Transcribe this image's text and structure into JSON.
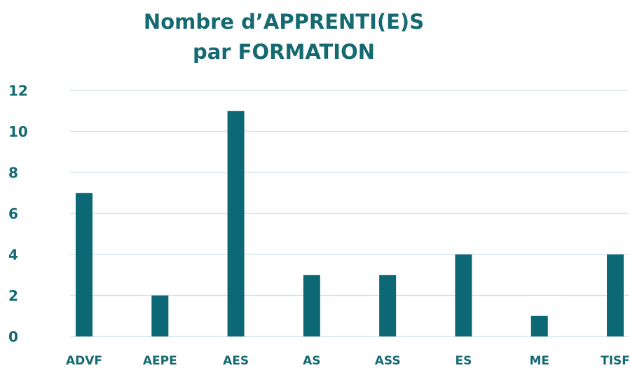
{
  "chart_data": {
    "type": "bar",
    "title": [
      "Nombre d’APPRENTI(E)S",
      "par FORMATION"
    ],
    "categories": [
      "ADVF",
      "AEPE",
      "AES",
      "AS",
      "ASS",
      "ES",
      "ME",
      "TISF"
    ],
    "values": [
      7,
      2,
      11,
      3,
      3,
      4,
      1,
      4
    ],
    "color": "#0b6874",
    "ylim": [
      0,
      12
    ],
    "yticks": [
      0,
      2,
      4,
      6,
      8,
      10,
      12
    ],
    "grid": true
  }
}
